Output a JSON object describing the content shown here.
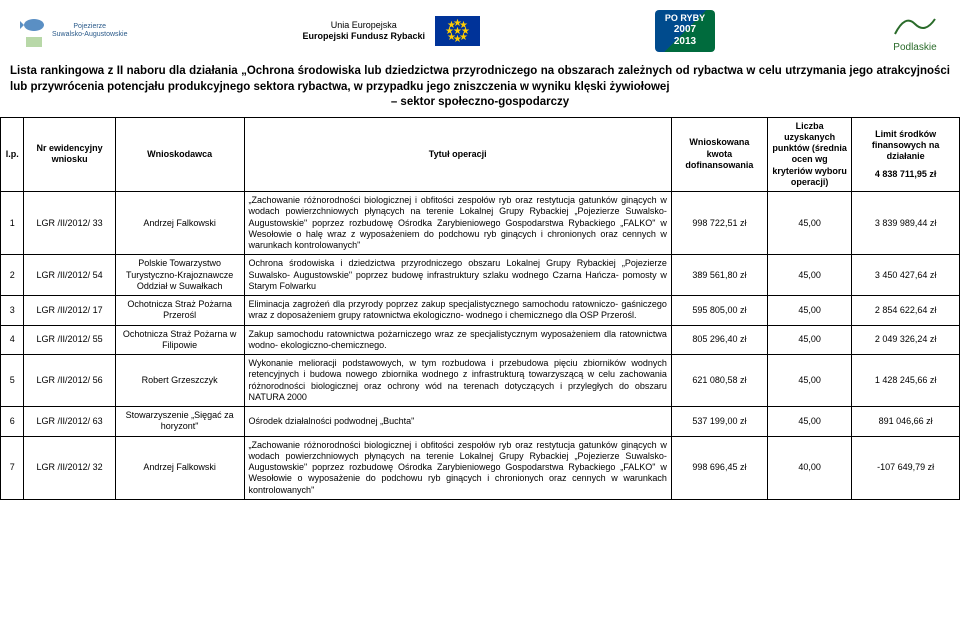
{
  "header": {
    "pojezierze_line1": "Pojezierze",
    "pojezierze_line2": "Suwalsko-Augustowskie",
    "eu_line1": "Unia Europejska",
    "eu_line2": "Europejski Fundusz Rybacki",
    "poryby": "PO RYBY 2007 2013",
    "podlaskie": "Podlaskie"
  },
  "title": "Lista rankingowa z II naboru dla działania „Ochrona środowiska lub dziedzictwa przyrodniczego na obszarach zależnych od rybactwa w celu utrzymania jego atrakcyjności lub przywrócenia potencjału produkcyjnego sektora rybactwa, w przypadku jego zniszczenia w wyniku klęski żywiołowej – sektor społeczno-gospodarczy",
  "columns": {
    "lp": "l.p.",
    "nr": "Nr ewidencyjny wniosku",
    "wnioskodawca": "Wnioskodawca",
    "tytul": "Tytuł operacji",
    "kwota": "Wnioskowana kwota dofinansowania",
    "punkty": "Liczba uzyskanych punktów (średnia ocen wg kryteriów wyboru operacji)",
    "limit": "Limit środków finansowych na działanie",
    "limit_val": "4 838 711,95 zł"
  },
  "rows": [
    {
      "lp": "1",
      "nr": "LGR /II/2012/ 33",
      "wn": "Andrzej Falkowski",
      "ty": "„Zachowanie różnorodności biologicznej i obfitości zespołów ryb oraz restytucja gatunków ginących w wodach powierzchniowych płynących na terenie Lokalnej Grupy Rybackiej „Pojezierze Suwalsko- Augustowskie\" poprzez rozbudowę Ośrodka Zarybieniowego Gospodarstwa Rybackiego „FALKO\" w Wesołowie o halę wraz z wyposażeniem do podchowu ryb ginących i chronionych oraz cennych w warunkach kontrolowanych\"",
      "kw": "998 722,51 zł",
      "pk": "45,00",
      "lm": "3 839 989,44 zł"
    },
    {
      "lp": "2",
      "nr": "LGR /II/2012/ 54",
      "wn": "Polskie Towarzystwo Turystyczno-Krajoznawcze Oddział w Suwałkach",
      "ty": "Ochrona środowiska i dziedzictwa przyrodniczego obszaru Lokalnej Grupy Rybackiej „Pojezierze Suwalsko- Augustowskie\" poprzez budowę infrastruktury szlaku wodnego Czarna Hańcza- pomosty w Starym Folwarku",
      "kw": "389 561,80 zł",
      "pk": "45,00",
      "lm": "3 450 427,64 zł"
    },
    {
      "lp": "3",
      "nr": "LGR /II/2012/ 17",
      "wn": "Ochotnicza Straż Pożarna Przerośl",
      "ty": "Eliminacja zagrożeń dla przyrody poprzez zakup specjalistycznego samochodu ratowniczo- gaśniczego wraz z doposażeniem grupy ratownictwa ekologiczno- wodnego i chemicznego dla OSP Przerośl.",
      "kw": "595 805,00 zł",
      "pk": "45,00",
      "lm": "2 854 622,64 zł"
    },
    {
      "lp": "4",
      "nr": "LGR /II/2012/ 55",
      "wn": "Ochotnicza Straż Pożarna w Filipowie",
      "ty": "Zakup samochodu ratownictwa pożarniczego wraz ze specjalistycznym wyposażeniem dla ratownictwa wodno- ekologiczno-chemicznego.",
      "kw": "805 296,40 zł",
      "pk": "45,00",
      "lm": "2 049 326,24 zł"
    },
    {
      "lp": "5",
      "nr": "LGR /II/2012/ 56",
      "wn": "Robert Grzeszczyk",
      "ty": "Wykonanie melioracji podstawowych, w tym rozbudowa i przebudowa pięciu zbiorników wodnych retencyjnych i budowa nowego zbiornika wodnego z infrastrukturą towarzyszącą w celu zachowania różnorodności biologicznej oraz ochrony wód na terenach dotyczących i przyległych do obszaru NATURA 2000",
      "kw": "621 080,58 zł",
      "pk": "45,00",
      "lm": "1 428 245,66 zł"
    },
    {
      "lp": "6",
      "nr": "LGR /II/2012/ 63",
      "wn": "Stowarzyszenie „Sięgać za horyzont\"",
      "ty": "Ośrodek działalności podwodnej „Buchta\"",
      "kw": "537 199,00 zł",
      "pk": "45,00",
      "lm": "891 046,66 zł"
    },
    {
      "lp": "7",
      "nr": "LGR /II/2012/ 32",
      "wn": "Andrzej Falkowski",
      "ty": "„Zachowanie różnorodności biologicznej i obfitości zespołów ryb oraz restytucja gatunków ginących w wodach powierzchniowych płynących na terenie Lokalnej Grupy Rybackiej „Pojezierze Suwalsko- Augustowskie\" poprzez rozbudowę Ośrodka Zarybieniowego Gospodarstwa Rybackiego „FALKO\" w Wesołowie o wyposażenie do podchowu ryb ginących i chronionych oraz cennych w warunkach kontrolowanych\"",
      "kw": "998 696,45 zł",
      "pk": "40,00",
      "lm": "-107 649,79 zł"
    }
  ]
}
